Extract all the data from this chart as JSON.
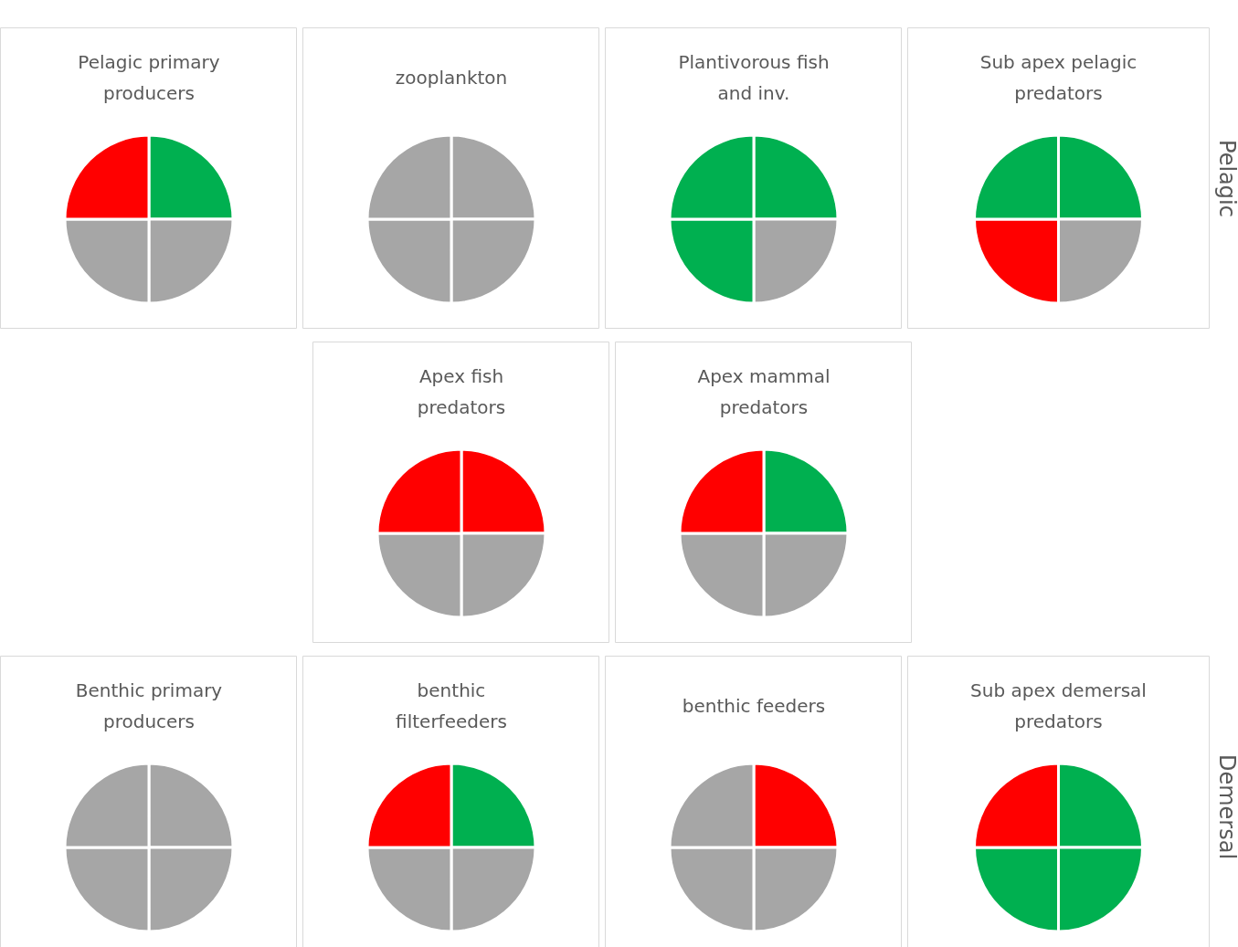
{
  "chart_data": [
    {
      "type": "pie",
      "title": "Pelagic primary\nproducers",
      "categories": [
        null,
        null,
        null,
        null
      ],
      "values": [
        25,
        25,
        25,
        25
      ],
      "colors": [
        "#00b050",
        "#a6a6a6",
        "#a6a6a6",
        "#ff0000"
      ]
    },
    {
      "type": "pie",
      "title": "zooplankton",
      "categories": [
        null,
        null,
        null,
        null
      ],
      "values": [
        25,
        25,
        25,
        25
      ],
      "colors": [
        "#a6a6a6",
        "#a6a6a6",
        "#a6a6a6",
        "#a6a6a6"
      ]
    },
    {
      "type": "pie",
      "title": "Plantivorous fish\nand inv.",
      "categories": [
        null,
        null,
        null,
        null
      ],
      "values": [
        25,
        25,
        25,
        25
      ],
      "colors": [
        "#00b050",
        "#a6a6a6",
        "#00b050",
        "#00b050"
      ]
    },
    {
      "type": "pie",
      "title": "Sub apex pelagic\npredators",
      "categories": [
        null,
        null,
        null,
        null
      ],
      "values": [
        25,
        25,
        25,
        25
      ],
      "colors": [
        "#00b050",
        "#a6a6a6",
        "#ff0000",
        "#00b050"
      ],
      "annotations": [
        "Pelagic"
      ]
    },
    {
      "type": "pie",
      "title": "Apex fish\npredators",
      "categories": [
        null,
        null,
        null,
        null
      ],
      "values": [
        25,
        25,
        25,
        25
      ],
      "colors": [
        "#ff0000",
        "#a6a6a6",
        "#a6a6a6",
        "#ff0000"
      ]
    },
    {
      "type": "pie",
      "title": "Apex mammal\npredators",
      "categories": [
        null,
        null,
        null,
        null
      ],
      "values": [
        25,
        25,
        25,
        25
      ],
      "colors": [
        "#00b050",
        "#a6a6a6",
        "#a6a6a6",
        "#ff0000"
      ]
    },
    {
      "type": "pie",
      "title": "Benthic primary\nproducers",
      "categories": [
        null,
        null,
        null,
        null
      ],
      "values": [
        25,
        25,
        25,
        25
      ],
      "colors": [
        "#a6a6a6",
        "#a6a6a6",
        "#a6a6a6",
        "#a6a6a6"
      ]
    },
    {
      "type": "pie",
      "title": "benthic\nfilterfeeders",
      "categories": [
        null,
        null,
        null,
        null
      ],
      "values": [
        25,
        25,
        25,
        25
      ],
      "colors": [
        "#00b050",
        "#a6a6a6",
        "#a6a6a6",
        "#ff0000"
      ]
    },
    {
      "type": "pie",
      "title": "benthic feeders",
      "categories": [
        null,
        null,
        null,
        null
      ],
      "values": [
        25,
        25,
        25,
        25
      ],
      "colors": [
        "#ff0000",
        "#a6a6a6",
        "#a6a6a6",
        "#a6a6a6"
      ]
    },
    {
      "type": "pie",
      "title": "Sub apex demersal\npredators",
      "categories": [
        null,
        null,
        null,
        null
      ],
      "values": [
        25,
        25,
        25,
        25
      ],
      "colors": [
        "#00b050",
        "#00b050",
        "#00b050",
        "#ff0000"
      ],
      "annotations": [
        "Demersal"
      ]
    }
  ]
}
